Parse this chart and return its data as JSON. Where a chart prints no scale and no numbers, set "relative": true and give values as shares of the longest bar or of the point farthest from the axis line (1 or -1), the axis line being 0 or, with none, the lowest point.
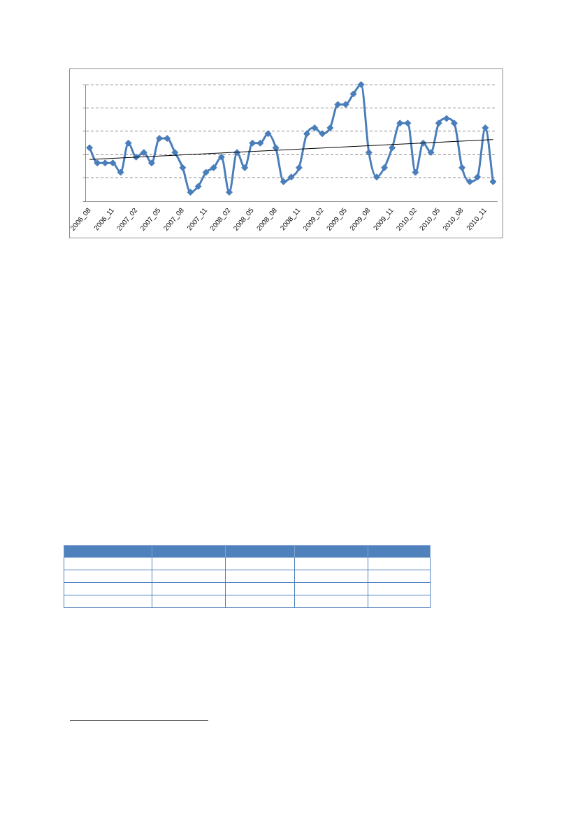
{
  "chart_data": {
    "type": "line",
    "relative": true,
    "grid": "y",
    "marker": "diamond",
    "line_style": "solid",
    "categories": [
      "2006_08",
      null,
      null,
      "2006_11",
      null,
      null,
      "2007_02",
      null,
      null,
      "2007_05",
      null,
      null,
      "2007_08",
      null,
      null,
      "2007_11",
      null,
      null,
      "2008_02",
      null,
      null,
      "2008_05",
      null,
      null,
      "2008_08",
      null,
      null,
      "2008_11",
      null,
      null,
      "2009_02",
      null,
      null,
      "2009_05",
      null,
      null,
      "2009_08",
      null,
      null,
      "2009_11",
      null,
      null,
      "2010_02",
      null,
      null,
      "2010_05",
      null,
      null,
      "2010_08",
      null,
      null,
      "2010_11",
      null
    ],
    "series": [
      {
        "color": "#4a7ebb",
        "values": [
          0.46,
          0.33,
          0.33,
          0.33,
          0.25,
          0.5,
          0.38,
          0.42,
          0.33,
          0.54,
          0.54,
          0.42,
          0.29,
          0.08,
          0.13,
          0.25,
          0.29,
          0.38,
          0.08,
          0.42,
          0.29,
          0.5,
          0.5,
          0.58,
          0.46,
          0.17,
          0.21,
          0.29,
          0.58,
          0.63,
          0.58,
          0.63,
          0.83,
          0.83,
          0.92,
          1,
          0.42,
          0.21,
          0.29,
          0.46,
          0.67,
          0.67,
          0.25,
          0.5,
          0.42,
          0.67,
          0.71,
          0.67,
          0.29,
          0.17,
          0.21,
          0.63,
          0.17
        ]
      },
      {
        "type": "line",
        "color": "#000000",
        "marker": "none",
        "values": [
          0.36,
          null,
          null,
          null,
          null,
          null,
          null,
          null,
          null,
          null,
          null,
          null,
          null,
          null,
          null,
          null,
          null,
          null,
          null,
          null,
          null,
          null,
          null,
          null,
          null,
          null,
          null,
          null,
          null,
          null,
          null,
          null,
          null,
          null,
          null,
          null,
          null,
          null,
          null,
          null,
          null,
          null,
          null,
          null,
          null,
          null,
          null,
          null,
          null,
          null,
          null,
          null,
          0.53
        ]
      }
    ]
  }
}
